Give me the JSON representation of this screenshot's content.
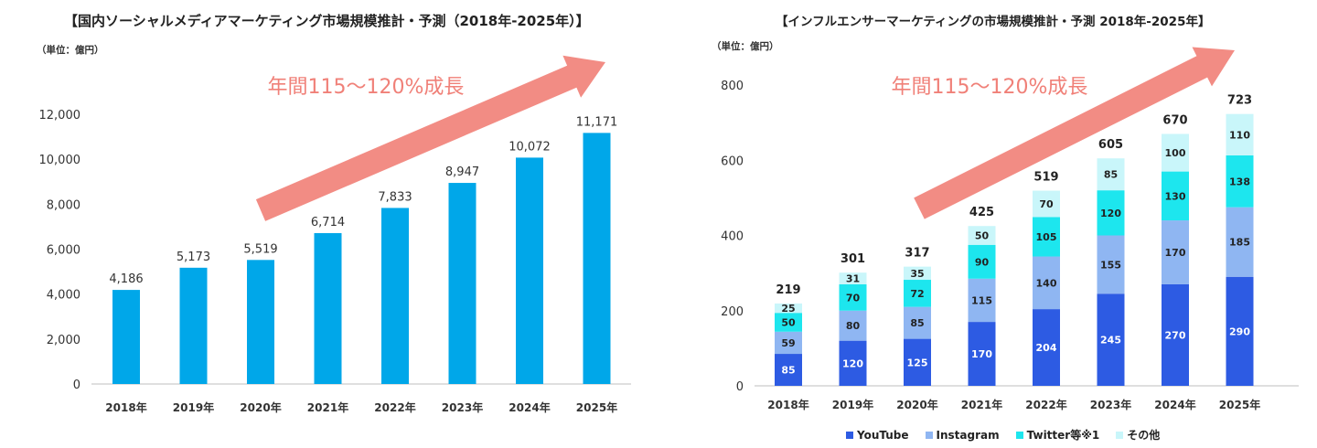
{
  "chart_data": [
    {
      "type": "bar",
      "title": "【国内ソーシャルメディアマーケティング市場規模推計・予測（2018年-2025年）】",
      "unit_label": "（単位：億円）",
      "categories": [
        "2018年",
        "2019年",
        "2020年",
        "2021年",
        "2022年",
        "2023年",
        "2024年",
        "2025年"
      ],
      "values": [
        4186,
        5173,
        5519,
        6714,
        7833,
        8947,
        10072,
        11171
      ],
      "value_labels": [
        "4,186",
        "5,173",
        "5,519",
        "6,714",
        "7,833",
        "8,947",
        "10,072",
        "11,171"
      ],
      "ylim": [
        0,
        12000
      ],
      "yticks": [
        0,
        2000,
        4000,
        6000,
        8000,
        10000,
        12000
      ],
      "ytick_labels": [
        "0",
        "2,000",
        "4,000",
        "6,000",
        "8,000",
        "10,000",
        "12,000"
      ],
      "bar_color": "#00a7e9",
      "annotation": "年間115～120%成長",
      "xlabel": "",
      "ylabel": ""
    },
    {
      "type": "stacked_bar",
      "title": "【インフルエンサーマーケティングの市場規模推計・予測 2018年-2025年】",
      "unit_label": "（単位：億円）",
      "categories": [
        "2018年",
        "2019年",
        "2020年",
        "2021年",
        "2022年",
        "2023年",
        "2024年",
        "2025年"
      ],
      "series": [
        {
          "name": "YouTube",
          "color": "#2d5be3",
          "label_color": "#ffffff",
          "values": [
            85,
            120,
            125,
            170,
            204,
            245,
            270,
            290
          ]
        },
        {
          "name": "Instagram",
          "color": "#8fb6f2",
          "label_color": "#222222",
          "values": [
            59,
            80,
            85,
            115,
            140,
            155,
            170,
            185
          ]
        },
        {
          "name": "Twitter等※1",
          "color": "#1de6ee",
          "label_color": "#222222",
          "values": [
            50,
            70,
            72,
            90,
            105,
            120,
            130,
            138
          ]
        },
        {
          "name": "その他",
          "color": "#c9f6fa",
          "label_color": "#222222",
          "values": [
            25,
            31,
            35,
            50,
            70,
            85,
            100,
            110
          ]
        }
      ],
      "totals": [
        219,
        301,
        317,
        425,
        519,
        605,
        670,
        723
      ],
      "ylim": [
        0,
        800
      ],
      "yticks": [
        0,
        200,
        400,
        600,
        800
      ],
      "ytick_labels": [
        "0",
        "200",
        "400",
        "600",
        "800"
      ],
      "annotation": "年間115～120%成長",
      "xlabel": "",
      "ylabel": ""
    }
  ],
  "colors": {
    "arrow": "#f28c84",
    "annotation_text": "#f08078"
  }
}
